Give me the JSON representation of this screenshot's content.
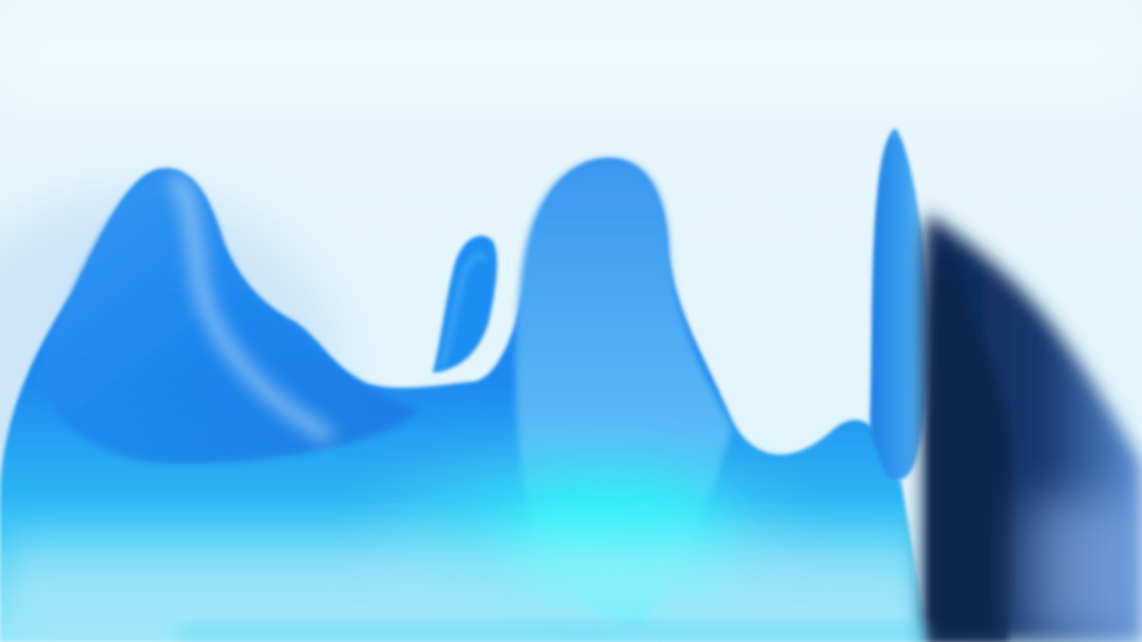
{
  "image": {
    "description_free": true,
    "palette": {
      "background_top": "#e8f6fb",
      "background_bottom": "#dff4fb",
      "wave_blue": "#1e88f0",
      "wave_deep": "#1565c0",
      "wave_cyan": "#2ee6f5",
      "wave_light": "#7fd3f7",
      "shadow_navy": "#0f2a55",
      "shadow_mid": "#1b4b8f",
      "highlight": "#ffffff"
    }
  }
}
